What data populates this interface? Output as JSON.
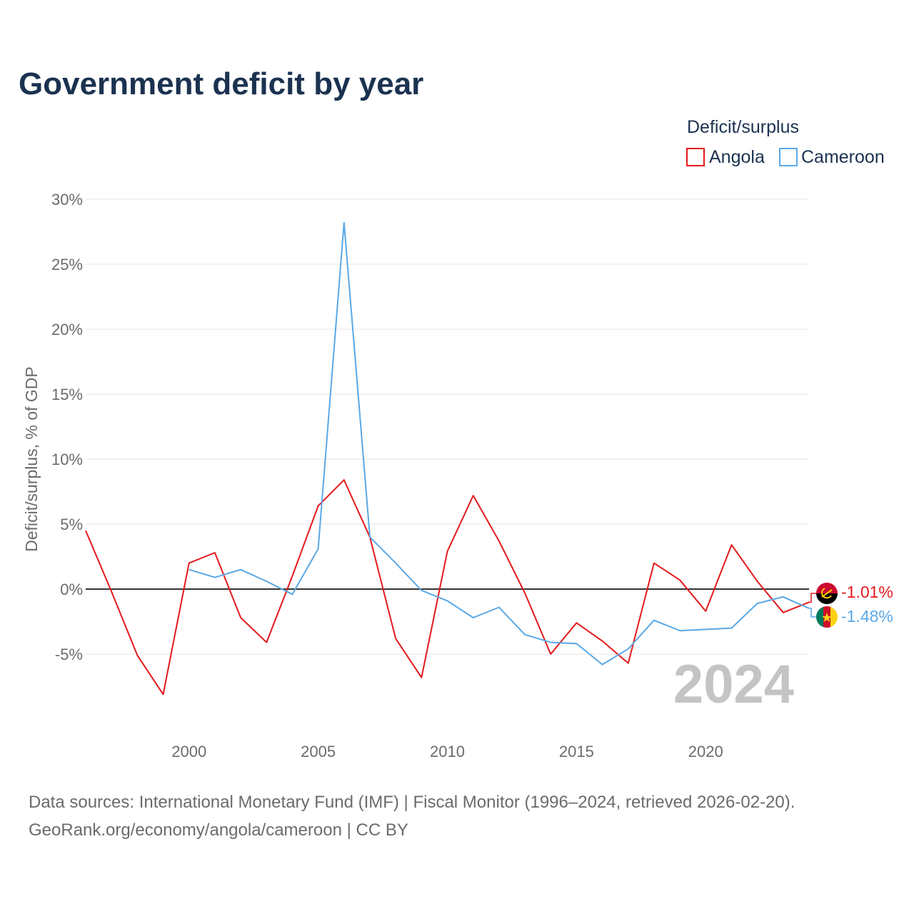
{
  "title": "Government deficit by year",
  "legend": {
    "title": "Deficit/surplus",
    "position": "top-right",
    "entries": [
      {
        "name": "Angola",
        "color": "#e31a1c"
      },
      {
        "name": "Cameroon",
        "color": "#5aa8e6"
      }
    ]
  },
  "year_watermark": "2024",
  "end_labels": [
    "-1.01%",
    "-1.48%"
  ],
  "flags": [
    "angola-flag-icon",
    "cameroon-flag-icon"
  ],
  "sources": {
    "line1": "Data sources: International Monetary Fund (IMF) | Fiscal Monitor (1996–2024, retrieved 2026-02-20).",
    "line2": "GeoRank.org/economy/angola/cameroon | CC BY"
  },
  "colors": {
    "title": "#1b3250",
    "angola": "#e31a1c",
    "cameroon": "#5aa8e6",
    "axis_text": "#6b6b6b",
    "grid": "#e6e6e6",
    "zero_line": "#333333",
    "watermark": "#c4c4c4"
  },
  "chart_data": {
    "type": "line",
    "title": "Government deficit by year",
    "xlabel": "",
    "ylabel": "Deficit/surplus, % of GDP",
    "xlim": [
      1996,
      2024
    ],
    "ylim": [
      -10,
      30
    ],
    "yticks": [
      -5,
      0,
      5,
      10,
      15,
      20,
      25,
      30
    ],
    "ytick_labels": [
      "-5%",
      "0%",
      "5%",
      "10%",
      "15%",
      "20%",
      "25%",
      "30%"
    ],
    "xticks": [
      2000,
      2005,
      2010,
      2015,
      2020
    ],
    "xtick_labels": [
      "2000",
      "2005",
      "2010",
      "2015",
      "2020"
    ],
    "grid": true,
    "series": [
      {
        "name": "Angola",
        "color": "#e31a1c",
        "x": [
          1996,
          1997,
          1998,
          1999,
          2000,
          2001,
          2002,
          2003,
          2004,
          2005,
          2006,
          2007,
          2008,
          2009,
          2010,
          2011,
          2012,
          2013,
          2014,
          2015,
          2016,
          2017,
          2018,
          2019,
          2020,
          2021,
          2022,
          2023,
          2024
        ],
        "values": [
          4.5,
          -0.2,
          -5.1,
          -8.1,
          2.0,
          2.8,
          -2.2,
          -4.1,
          1.0,
          6.4,
          8.4,
          4.0,
          -3.8,
          -6.8,
          2.9,
          7.2,
          3.7,
          -0.3,
          -5.0,
          -2.6,
          -4.0,
          -5.7,
          2.0,
          0.7,
          -1.7,
          3.4,
          0.6,
          -1.8,
          -1.01
        ]
      },
      {
        "name": "Cameroon",
        "color": "#5aa8e6",
        "x": [
          2000,
          2001,
          2002,
          2003,
          2004,
          2005,
          2006,
          2007,
          2008,
          2009,
          2010,
          2011,
          2012,
          2013,
          2014,
          2015,
          2016,
          2017,
          2018,
          2019,
          2020,
          2021,
          2022,
          2023,
          2024
        ],
        "values": [
          1.5,
          0.9,
          1.5,
          0.6,
          -0.4,
          3.1,
          28.2,
          4.0,
          2.0,
          -0.1,
          -0.9,
          -2.2,
          -1.4,
          -3.5,
          -4.1,
          -4.2,
          -5.8,
          -4.6,
          -2.4,
          -3.2,
          -3.1,
          -3.0,
          -1.1,
          -0.6,
          -1.48
        ]
      }
    ],
    "end_values": [
      -1.01,
      -1.48
    ]
  }
}
